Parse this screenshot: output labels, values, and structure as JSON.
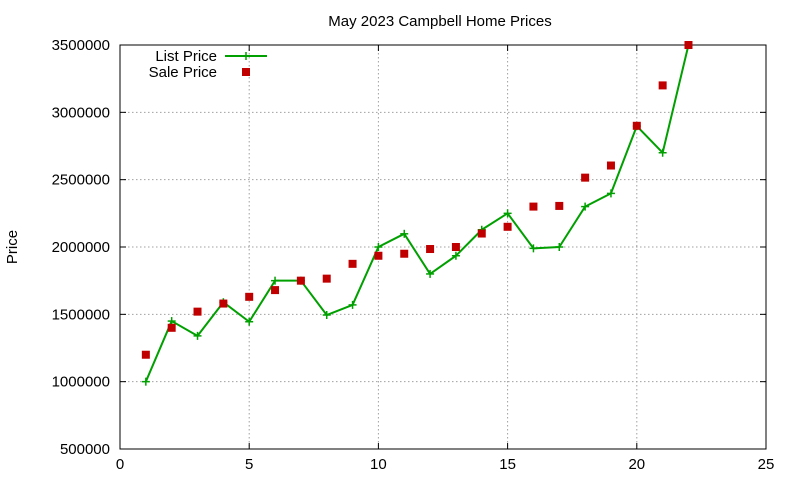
{
  "chart_data": {
    "type": "line",
    "title": "May 2023 Campbell Home Prices",
    "xlabel": "",
    "ylabel": "Price",
    "xlim": [
      0,
      25
    ],
    "ylim": [
      500000,
      3500000
    ],
    "x_ticks": [
      0,
      5,
      10,
      15,
      20,
      25
    ],
    "y_ticks": [
      500000,
      1000000,
      1500000,
      2000000,
      2500000,
      3000000,
      3500000
    ],
    "grid": true,
    "legend_position": "top-left",
    "series": [
      {
        "name": "List Price",
        "style": "line-with-plus-markers",
        "color": "#00a000",
        "x": [
          1,
          2,
          3,
          4,
          5,
          6,
          7,
          8,
          9,
          10,
          11,
          12,
          13,
          14,
          15,
          16,
          17,
          18,
          19,
          20,
          21,
          22
        ],
        "values": [
          1000000,
          1450000,
          1340000,
          1590000,
          1445000,
          1750000,
          1750000,
          1495000,
          1570000,
          2000000,
          2098000,
          1800000,
          1935000,
          2128000,
          2250000,
          1990000,
          2000000,
          2300000,
          2398000,
          2898000,
          2700000,
          3500000
        ]
      },
      {
        "name": "Sale Price",
        "style": "square-markers",
        "color": "#c00000",
        "x": [
          1,
          2,
          3,
          4,
          5,
          6,
          7,
          8,
          9,
          10,
          11,
          12,
          13,
          14,
          15,
          16,
          17,
          18,
          19,
          20,
          21,
          22
        ],
        "values": [
          1200000,
          1400000,
          1520000,
          1580000,
          1630000,
          1680000,
          1750000,
          1765000,
          1875000,
          1935000,
          1950000,
          1985000,
          2000000,
          2100000,
          2150000,
          2300000,
          2305000,
          2515000,
          2605000,
          2900000,
          3200000,
          3500000
        ]
      }
    ]
  }
}
